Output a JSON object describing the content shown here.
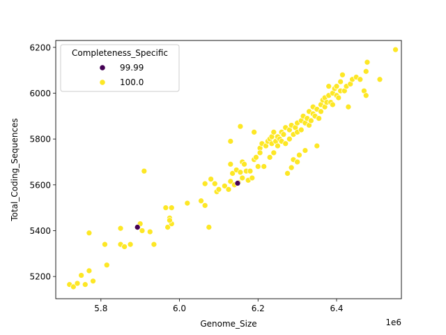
{
  "chart_data": {
    "type": "scatter",
    "xlabel": "Genome_Size",
    "ylabel": "Total_Coding_Sequences",
    "x_offset_label": "1e6",
    "x_multiplier": 1000000,
    "xlim": [
      5.685,
      6.565
    ],
    "ylim": [
      5103,
      6230
    ],
    "x_ticks": [
      5.8,
      6.0,
      6.2,
      6.4
    ],
    "x_tick_labels": [
      "5.8",
      "6.0",
      "6.2",
      "6.4"
    ],
    "y_ticks": [
      5200,
      5400,
      5600,
      5800,
      6000,
      6200
    ],
    "y_tick_labels": [
      "5200",
      "5400",
      "5600",
      "5800",
      "6000",
      "6200"
    ],
    "grid": false,
    "legend": {
      "title": "Completeness_Specific",
      "placement": "top-left",
      "entries": [
        {
          "label": "99.99",
          "color": "#440154"
        },
        {
          "label": "100.0",
          "color": "#fde725"
        }
      ]
    },
    "series": [
      {
        "name": "99.99",
        "color": "#440154",
        "points": [
          [
            5.893,
            5415
          ],
          [
            6.148,
            5607
          ]
        ]
      },
      {
        "name": "100.0",
        "color": "#fde725",
        "points": [
          [
            5.72,
            5165
          ],
          [
            5.73,
            5155
          ],
          [
            5.74,
            5170
          ],
          [
            5.75,
            5205
          ],
          [
            5.76,
            5165
          ],
          [
            5.77,
            5225
          ],
          [
            5.78,
            5180
          ],
          [
            5.77,
            5390
          ],
          [
            5.81,
            5340
          ],
          [
            5.815,
            5250
          ],
          [
            5.85,
            5410
          ],
          [
            5.85,
            5340
          ],
          [
            5.86,
            5330
          ],
          [
            5.875,
            5340
          ],
          [
            5.9,
            5430
          ],
          [
            5.905,
            5400
          ],
          [
            5.91,
            5660
          ],
          [
            5.925,
            5395
          ],
          [
            5.935,
            5340
          ],
          [
            5.965,
            5500
          ],
          [
            5.97,
            5415
          ],
          [
            5.975,
            5455
          ],
          [
            5.98,
            5500
          ],
          [
            5.98,
            5430
          ],
          [
            5.975,
            5445
          ],
          [
            6.02,
            5520
          ],
          [
            6.055,
            5530
          ],
          [
            6.065,
            5510
          ],
          [
            6.065,
            5605
          ],
          [
            6.075,
            5415
          ],
          [
            6.08,
            5625
          ],
          [
            6.09,
            5605
          ],
          [
            6.095,
            5570
          ],
          [
            6.1,
            5580
          ],
          [
            6.115,
            5595
          ],
          [
            6.125,
            5580
          ],
          [
            6.13,
            5615
          ],
          [
            6.13,
            5690
          ],
          [
            6.13,
            5790
          ],
          [
            6.135,
            5650
          ],
          [
            6.14,
            5600
          ],
          [
            6.145,
            5665
          ],
          [
            6.15,
            5610
          ],
          [
            6.155,
            5655
          ],
          [
            6.155,
            5855
          ],
          [
            6.16,
            5630
          ],
          [
            6.16,
            5700
          ],
          [
            6.165,
            5690
          ],
          [
            6.17,
            5660
          ],
          [
            6.175,
            5620
          ],
          [
            6.18,
            5660
          ],
          [
            6.185,
            5630
          ],
          [
            6.19,
            5710
          ],
          [
            6.19,
            5830
          ],
          [
            6.195,
            5720
          ],
          [
            6.2,
            5680
          ],
          [
            6.205,
            5760
          ],
          [
            6.205,
            5740
          ],
          [
            6.21,
            5780
          ],
          [
            6.215,
            5680
          ],
          [
            6.22,
            5770
          ],
          [
            6.225,
            5790
          ],
          [
            6.23,
            5720
          ],
          [
            6.23,
            5800
          ],
          [
            6.235,
            5810
          ],
          [
            6.235,
            5780
          ],
          [
            6.24,
            5740
          ],
          [
            6.24,
            5830
          ],
          [
            6.245,
            5790
          ],
          [
            6.25,
            5810
          ],
          [
            6.25,
            5770
          ],
          [
            6.255,
            5800
          ],
          [
            6.26,
            5830
          ],
          [
            6.26,
            5790
          ],
          [
            6.265,
            5820
          ],
          [
            6.27,
            5850
          ],
          [
            6.27,
            5780
          ],
          [
            6.275,
            5650
          ],
          [
            6.28,
            5800
          ],
          [
            6.28,
            5840
          ],
          [
            6.285,
            5860
          ],
          [
            6.285,
            5675
          ],
          [
            6.29,
            5710
          ],
          [
            6.29,
            5820
          ],
          [
            6.295,
            5850
          ],
          [
            6.3,
            5870
          ],
          [
            6.3,
            5830
          ],
          [
            6.3,
            5700
          ],
          [
            6.305,
            5730
          ],
          [
            6.31,
            5880
          ],
          [
            6.31,
            5840
          ],
          [
            6.315,
            5900
          ],
          [
            6.32,
            5870
          ],
          [
            6.32,
            5750
          ],
          [
            6.325,
            5890
          ],
          [
            6.33,
            5860
          ],
          [
            6.33,
            5920
          ],
          [
            6.335,
            5880
          ],
          [
            6.34,
            5910
          ],
          [
            6.34,
            5940
          ],
          [
            6.345,
            5900
          ],
          [
            6.35,
            5930
          ],
          [
            6.35,
            5770
          ],
          [
            6.355,
            5890
          ],
          [
            6.36,
            5950
          ],
          [
            6.36,
            5920
          ],
          [
            6.365,
            5970
          ],
          [
            6.37,
            5940
          ],
          [
            6.37,
            5980
          ],
          [
            6.375,
            5960
          ],
          [
            6.38,
            5990
          ],
          [
            6.38,
            6030
          ],
          [
            6.385,
            5960
          ],
          [
            6.39,
            6000
          ],
          [
            6.39,
            5950
          ],
          [
            6.395,
            6020
          ],
          [
            6.4,
            5990
          ],
          [
            6.4,
            6030
          ],
          [
            6.405,
            5980
          ],
          [
            6.41,
            6050
          ],
          [
            6.41,
            6010
          ],
          [
            6.415,
            6080
          ],
          [
            6.42,
            6010
          ],
          [
            6.425,
            6030
          ],
          [
            6.43,
            5940
          ],
          [
            6.435,
            6040
          ],
          [
            6.44,
            6060
          ],
          [
            6.45,
            6070
          ],
          [
            6.46,
            6060
          ],
          [
            6.47,
            6010
          ],
          [
            6.475,
            6095
          ],
          [
            6.475,
            5990
          ],
          [
            6.478,
            6135
          ],
          [
            6.51,
            6060
          ],
          [
            6.55,
            6190
          ]
        ]
      }
    ]
  }
}
